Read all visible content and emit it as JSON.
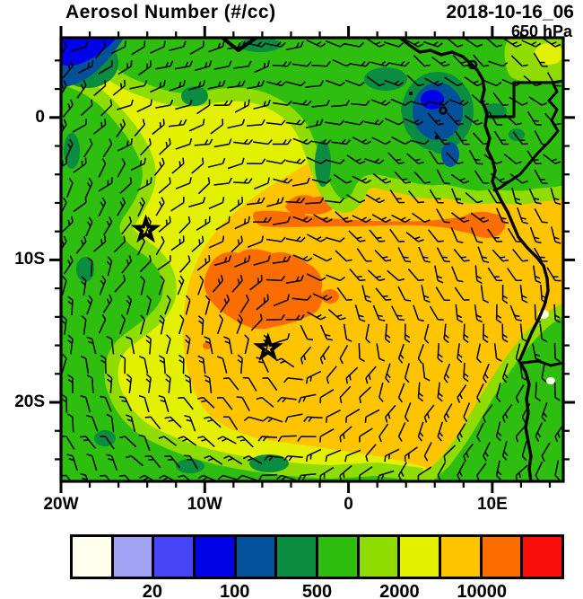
{
  "header": {
    "title": "Aerosol Number (#/cc)",
    "datetime": "2018-10-16_06",
    "level": "650 hPa"
  },
  "axes": {
    "lat_labels": [
      {
        "label": "0",
        "deg": 0
      },
      {
        "label": "10S",
        "deg": -10
      },
      {
        "label": "20S",
        "deg": -20
      }
    ],
    "lon_labels": [
      {
        "label": "20W",
        "deg": -20
      },
      {
        "label": "10W",
        "deg": -10
      },
      {
        "label": "0",
        "deg": 0
      },
      {
        "label": "10E",
        "deg": 10
      }
    ],
    "minor_tick_step_deg": 2,
    "major_tick_step_deg": 10,
    "lon_range_deg": [
      -20,
      15
    ],
    "lat_range_deg": [
      -25.5,
      5.6
    ]
  },
  "colorbar": {
    "colors": [
      "#FFFFEC",
      "#A2A2F5",
      "#4646F8",
      "#0202E8",
      "#03509B",
      "#0A8C41",
      "#2EBE10",
      "#8FDC00",
      "#E3F000",
      "#FFC400",
      "#FC6D00",
      "#FB0F0B"
    ],
    "labels": [
      {
        "text": "20",
        "boundary_index": 2
      },
      {
        "text": "100",
        "boundary_index": 4
      },
      {
        "text": "500",
        "boundary_index": 6
      },
      {
        "text": "2000",
        "boundary_index": 8
      },
      {
        "text": "10000",
        "boundary_index": 10
      }
    ]
  },
  "markers": [
    {
      "symbol": "star",
      "lon_deg": -14.1,
      "lat_deg": -7.9
    },
    {
      "symbol": "star",
      "lon_deg": -5.6,
      "lat_deg": -16.2
    }
  ],
  "chart_data": {
    "type": "heatmap",
    "subtype": "filled_contour_map_with_wind_barbs",
    "title": "Aerosol Number (#/cc)",
    "units": "#/cc",
    "valid_time": "2018-10-16_06",
    "pressure_level_hPa": 650,
    "lon_range_deg": [
      -20,
      15
    ],
    "lat_range_deg": [
      -25.5,
      5.6
    ],
    "lon_tick_labels": [
      "20W",
      "10W",
      "0",
      "10E"
    ],
    "lat_tick_labels": [
      "0",
      "10S",
      "20S"
    ],
    "color_scale": "discrete, logarithmic-style, 12 bins",
    "labeled_levels": [
      20,
      100,
      500,
      2000,
      10000
    ],
    "features": [
      {
        "region": "central South Atlantic smoke plume core near 6W, 12S",
        "value": ">10000",
        "color": "deep orange"
      },
      {
        "region": "zonal plume filament along ~7S stretching from 7W to the African coast",
        "value": ">10000",
        "color": "deep orange"
      },
      {
        "region": "broad subtropical South Atlantic, center and east of map",
        "value": "2000-10000",
        "color": "gold"
      },
      {
        "region": "ring around plume, upper-left middle of map",
        "value": "1000-2000",
        "color": "yellow"
      },
      {
        "region": "western edge, northern band and southern edge of map",
        "value": "200-1000",
        "color": "green / yellow-green"
      },
      {
        "region": "northwest corner open Atlantic",
        "value": "100-200",
        "color": "blue / dark teal"
      },
      {
        "region": "Gulf of Guinea and Congo basin minimum near 5E, 1S",
        "value": "50-200",
        "color": "dark teal with blue core"
      },
      {
        "region": "southeast corner inland Angola region",
        "value": "500-1000",
        "color": "green"
      },
      {
        "region": "tiny coastal spots near 11E, 14S and 12E, 18S",
        "value": "<10",
        "color": "white"
      }
    ],
    "wind": {
      "depiction": "wind barbs on regular grid over whole map",
      "pattern": "closed anticyclonic gyre circulation centered near 6W, 16S"
    },
    "map_overlays": [
      "African coastline",
      "country borders",
      "small island outlines in Gulf of Guinea",
      "two star markers"
    ]
  }
}
